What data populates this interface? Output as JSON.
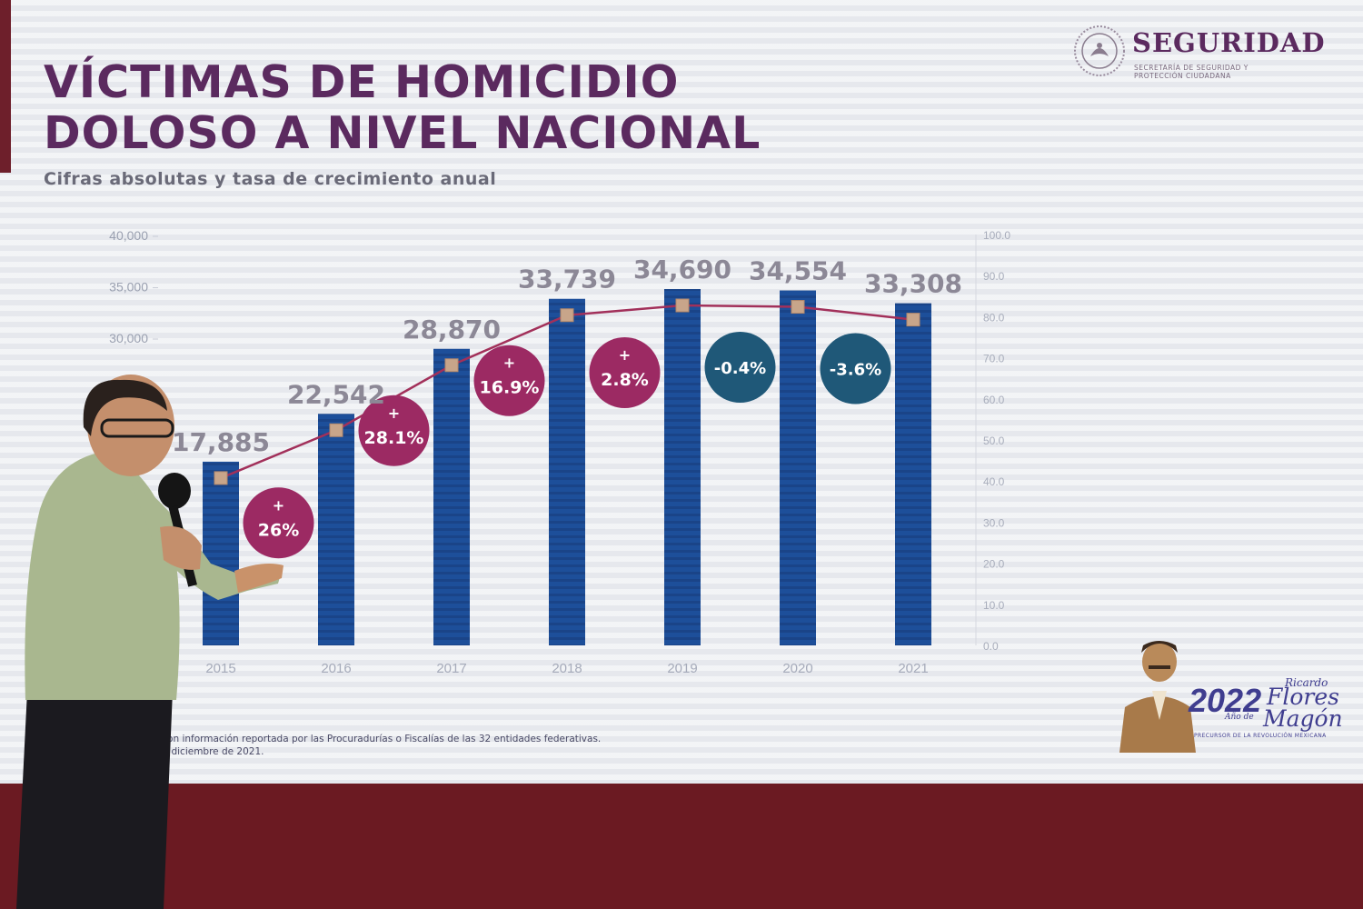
{
  "slide": {
    "title_line1": "VÍCTIMAS DE HOMICIDIO",
    "title_line2": "DOLOSO A NIVEL NACIONAL",
    "subtitle": "Cifras absolutas y tasa de crecimiento anual",
    "logo_name": "SEGURIDAD",
    "logo_sub": "SECRETARÍA DE SEGURIDAD Y PROTECCIÓN CIUDADANA",
    "footnote_line1": "l con información reportada por las Procuradurías o Fiscalías de las 32 entidades federativas.",
    "footnote_line2": "de diciembre de 2021.",
    "badge_year": "2022",
    "badge_name1": "Ricardo",
    "badge_name2": "Flores",
    "badge_ano": "Año de",
    "badge_name3": "Magón",
    "badge_caption": "PRECURSOR DE LA REVOLUCIÓN MEXICANA",
    "colors": {
      "title": "#5b2a5f",
      "bar": "#1d4f9a",
      "positive_bubble": "#9c2a63",
      "negative_bubble": "#1f5878",
      "line": "#a2305a",
      "marker": "#c8a58a"
    }
  },
  "chart_data": {
    "type": "bar",
    "categories": [
      "2015",
      "2016",
      "2017",
      "2018",
      "2019",
      "2020",
      "2021"
    ],
    "values": [
      17885,
      22542,
      28870,
      33739,
      34690,
      34554,
      33308
    ],
    "value_labels": [
      "17,885",
      "22,542",
      "28,870",
      "33,739",
      "34,690",
      "34,554",
      "33,308"
    ],
    "left_ticks": [
      "40,000",
      "35,000",
      "30,000"
    ],
    "left_tick_values": [
      40000,
      35000,
      30000
    ],
    "right_ticks": [
      "100.0",
      "90.0",
      "80.0",
      "70.0",
      "60.0",
      "50.0",
      "40.0",
      "30.0",
      "20.0",
      "10.0",
      "0.0"
    ],
    "right_tick_values": [
      100,
      90,
      80,
      70,
      60,
      50,
      40,
      30,
      20,
      10,
      0
    ],
    "ylim": [
      0,
      40000
    ],
    "growth": [
      {
        "from": "2015",
        "to": "2016",
        "sign": "+",
        "label": "26%",
        "positive": true
      },
      {
        "from": "2016",
        "to": "2017",
        "sign": "+",
        "label": "28.1%",
        "positive": true
      },
      {
        "from": "2017",
        "to": "2018",
        "sign": "+",
        "label": "16.9%",
        "positive": true
      },
      {
        "from": "2018",
        "to": "2019",
        "sign": "+",
        "label": "2.8%",
        "positive": true
      },
      {
        "from": "2019",
        "to": "2020",
        "sign": "",
        "label": "-0.4%",
        "positive": false
      },
      {
        "from": "2020",
        "to": "2021",
        "sign": "",
        "label": "-3.6%",
        "positive": false
      }
    ],
    "line_series": {
      "values": [
        17885,
        22542,
        28870,
        33739,
        34690,
        34554,
        33308
      ]
    },
    "grid": false
  }
}
